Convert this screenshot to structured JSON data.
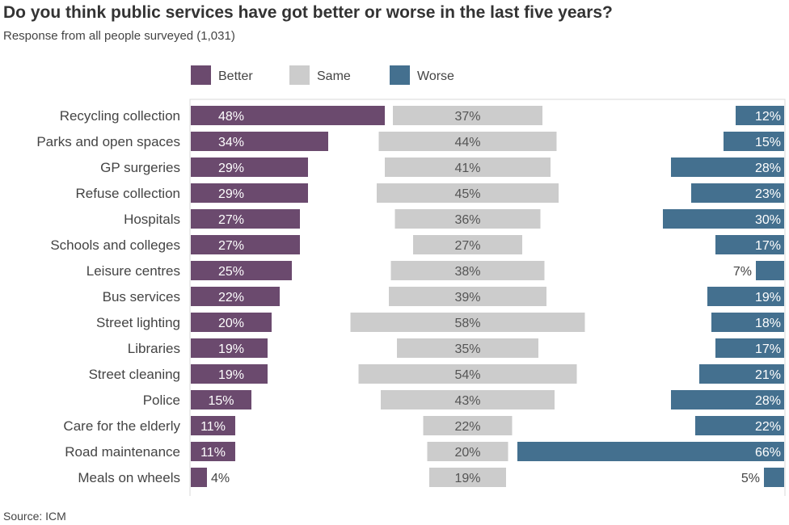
{
  "title": "Do you think public services have got better or worse in the last five years?",
  "subtitle": "Response from all people surveyed (1,031)",
  "source": "Source: ICM",
  "chart_data": {
    "type": "bar",
    "orientation": "horizontal",
    "title": "Do you think public services have got better or worse in the last five years?",
    "unit": "%",
    "legend_placement": "top",
    "grid": false,
    "categories": [
      "Recycling collection",
      "Parks and open spaces",
      "GP surgeries",
      "Refuse collection",
      "Hospitals",
      "Schools and colleges",
      "Leisure centres",
      "Bus services",
      "Street lighting",
      "Libraries",
      "Street cleaning",
      "Police",
      "Care for the elderly",
      "Road maintenance",
      "Meals on wheels"
    ],
    "series": [
      {
        "name": "Better",
        "color": "#6b4a6e",
        "values": [
          48,
          34,
          29,
          29,
          27,
          27,
          25,
          22,
          20,
          19,
          19,
          15,
          11,
          11,
          4
        ]
      },
      {
        "name": "Same",
        "color": "#cccccc",
        "values": [
          37,
          44,
          41,
          45,
          36,
          27,
          38,
          39,
          58,
          35,
          54,
          43,
          22,
          20,
          19
        ]
      },
      {
        "name": "Worse",
        "color": "#44708f",
        "values": [
          12,
          15,
          28,
          23,
          30,
          17,
          7,
          19,
          18,
          17,
          21,
          28,
          22,
          66,
          5
        ]
      }
    ]
  }
}
